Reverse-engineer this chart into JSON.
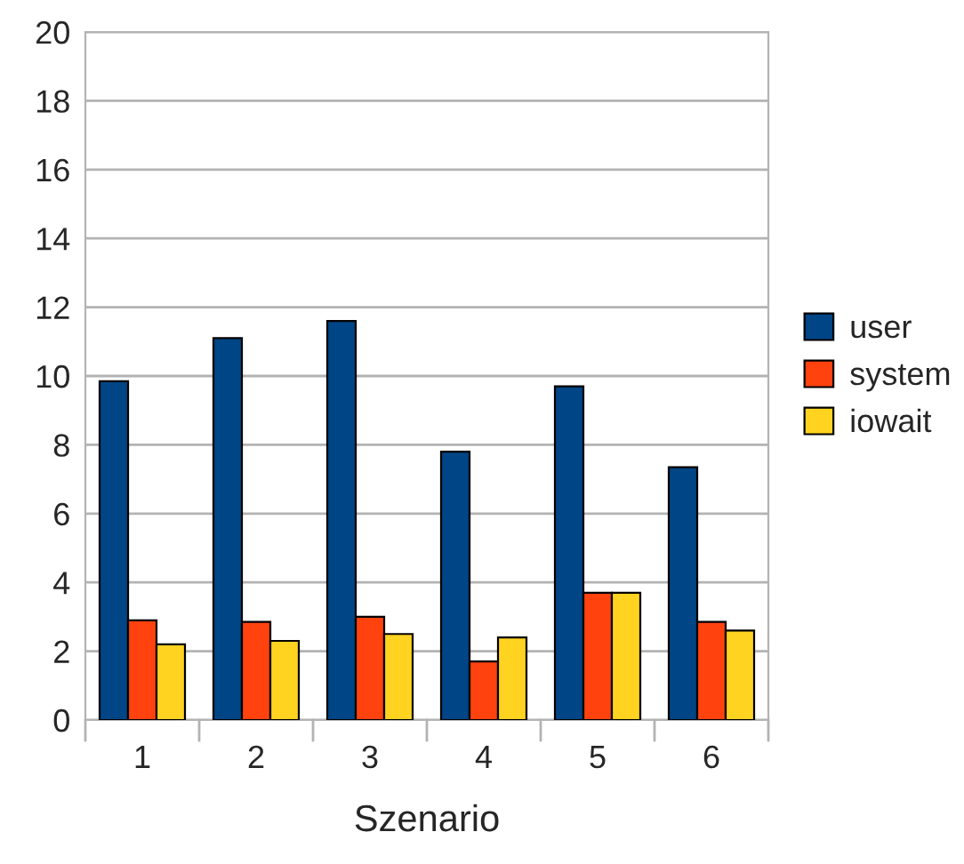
{
  "chart_data": {
    "type": "bar",
    "xlabel": "Szenario",
    "categories": [
      "1",
      "2",
      "3",
      "4",
      "5",
      "6"
    ],
    "series": [
      {
        "name": "user",
        "color": "#004586",
        "values": [
          9.85,
          11.1,
          11.6,
          7.8,
          9.7,
          7.35
        ]
      },
      {
        "name": "system",
        "color": "#ff420e",
        "values": [
          2.9,
          2.85,
          3.0,
          1.7,
          3.7,
          2.85
        ]
      },
      {
        "name": "iowait",
        "color": "#ffd320",
        "values": [
          2.2,
          2.3,
          2.5,
          2.4,
          3.7,
          2.6
        ]
      }
    ],
    "ylim": [
      0,
      20
    ],
    "yticks": [
      0,
      2,
      4,
      6,
      8,
      10,
      12,
      14,
      16,
      18,
      20
    ],
    "grid": "y",
    "legend": "right"
  }
}
